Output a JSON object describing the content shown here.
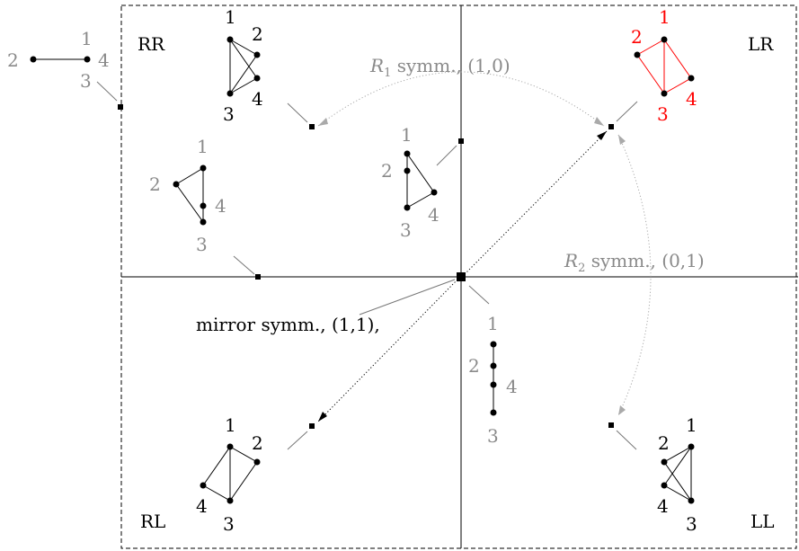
{
  "quadrants": {
    "rr": "RR",
    "lr": "LR",
    "rl": "RL",
    "ll": "LL"
  },
  "annotations": {
    "r1_symbol": "R",
    "r1_subscript": "1",
    "r1_text": " symm., (1,0)",
    "r2_symbol": "R",
    "r2_subscript": "2",
    "r2_text": " symm., (0,1)",
    "mirror": "mirror symm., (1,1),"
  },
  "node_labels": [
    "1",
    "2",
    "3",
    "4"
  ],
  "colors": {
    "black": "#000000",
    "gray": "#8a8a8a",
    "red": "#ff0000",
    "light_gray": "#b0b0b0"
  }
}
